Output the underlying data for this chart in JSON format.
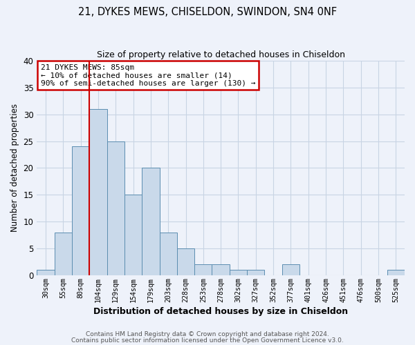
{
  "title": "21, DYKES MEWS, CHISELDON, SWINDON, SN4 0NF",
  "subtitle": "Size of property relative to detached houses in Chiseldon",
  "xlabel": "Distribution of detached houses by size in Chiseldon",
  "ylabel": "Number of detached properties",
  "bar_values": [
    1,
    8,
    24,
    31,
    25,
    15,
    20,
    8,
    5,
    2,
    2,
    1,
    1,
    0,
    2,
    0,
    0,
    0,
    0,
    0,
    1
  ],
  "bin_labels": [
    "30sqm",
    "55sqm",
    "80sqm",
    "104sqm",
    "129sqm",
    "154sqm",
    "179sqm",
    "203sqm",
    "228sqm",
    "253sqm",
    "278sqm",
    "302sqm",
    "327sqm",
    "352sqm",
    "377sqm",
    "401sqm",
    "426sqm",
    "451sqm",
    "476sqm",
    "500sqm",
    "525sqm"
  ],
  "bar_color": "#c9d9ea",
  "bar_edge_color": "#5b8db0",
  "grid_color": "#c8d4e4",
  "background_color": "#eef2fa",
  "vline_color": "#cc0000",
  "annotation_title": "21 DYKES MEWS: 85sqm",
  "annotation_line1": "← 10% of detached houses are smaller (14)",
  "annotation_line2": "90% of semi-detached houses are larger (130) →",
  "annotation_box_edge": "#cc0000",
  "ylim": [
    0,
    40
  ],
  "yticks": [
    0,
    5,
    10,
    15,
    20,
    25,
    30,
    35,
    40
  ],
  "footnote1": "Contains HM Land Registry data © Crown copyright and database right 2024.",
  "footnote2": "Contains public sector information licensed under the Open Government Licence v3.0."
}
